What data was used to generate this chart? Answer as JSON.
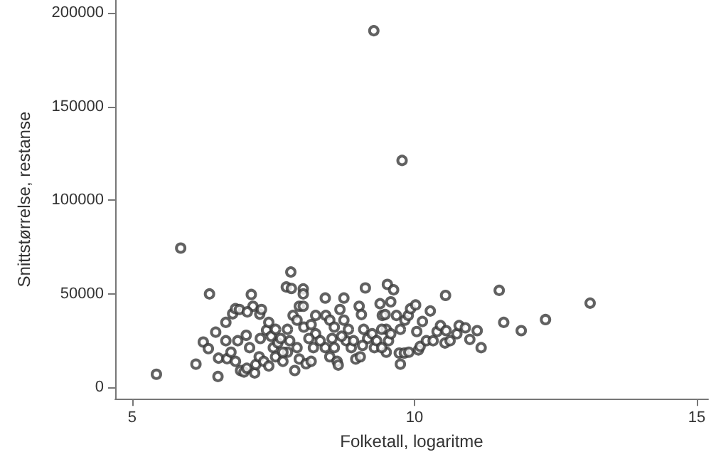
{
  "chart_data": {
    "type": "scatter",
    "xlabel": "Folketall, logaritme",
    "ylabel": "Snittstørrelse, restanse",
    "xlim": [
      4.7,
      15.2
    ],
    "xticks": [
      5,
      10,
      15
    ],
    "ylim": [
      -6000,
      207000
    ],
    "yticks": [
      0,
      50000,
      100000,
      150000,
      200000
    ],
    "grid": false,
    "marker": "circle",
    "series": [
      {
        "color": "#3a3a3a",
        "x": [
          9.28,
          9.78,
          5.86,
          5.43,
          6.37,
          6.52,
          6.13,
          6.26,
          6.35,
          6.48,
          6.66,
          6.53,
          6.68,
          6.66,
          6.75,
          6.78,
          6.83,
          6.9,
          7.11,
          7.14,
          7.04,
          7.26,
          7.29,
          6.83,
          6.87,
          6.92,
          6.98,
          7.03,
          7.02,
          7.08,
          7.17,
          7.19,
          7.25,
          7.27,
          7.33,
          7.38,
          7.42,
          7.46,
          7.5,
          7.54,
          7.58,
          7.67,
          7.73,
          7.82,
          7.81,
          8.03,
          8.03,
          7.96,
          8.03,
          7.75,
          7.85,
          7.92,
          7.96,
          7.88,
          8.08,
          8.17,
          8.21,
          8.25,
          8.13,
          7.75,
          7.67,
          7.79,
          8.04,
          8.25,
          8.42,
          8.43,
          8.5,
          8.58,
          8.54,
          8.42,
          8.5,
          8.63,
          8.65,
          8.75,
          8.68,
          8.75,
          8.83,
          8.79,
          8.88,
          8.96,
          9.04,
          9.02,
          9.06,
          9.13,
          9.1,
          9.17,
          9.25,
          9.29,
          9.39,
          9.43,
          9.48,
          9.52,
          9.58,
          9.63,
          9.5,
          9.54,
          9.5,
          9.68,
          9.73,
          9.75,
          9.75,
          9.83,
          9.82,
          9.89,
          9.9,
          9.93,
          10.02,
          10.04,
          10.07,
          10.1,
          10.14,
          10.21,
          10.28,
          10.33,
          10.4,
          10.46,
          10.56,
          10.55,
          10.54,
          10.63,
          10.75,
          10.79,
          10.9,
          10.98,
          11.11,
          11.18,
          11.5,
          11.58,
          11.89,
          12.32,
          13.11,
          7.42,
          7.54,
          7.63,
          7.92,
          8.17,
          8.33,
          8.58,
          8.71,
          8.92,
          9.08,
          9.33,
          9.42,
          9.58,
          9.42
        ],
        "values": [
          190600,
          121300,
          74500,
          7100,
          50000,
          5900,
          12500,
          24300,
          20800,
          29600,
          34800,
          15700,
          15400,
          25000,
          18900,
          39400,
          42100,
          41700,
          49700,
          43400,
          40400,
          39200,
          41700,
          14000,
          25000,
          9100,
          8300,
          10300,
          27900,
          21300,
          7800,
          12300,
          16400,
          26200,
          14000,
          30600,
          11500,
          27400,
          21300,
          16400,
          23800,
          14000,
          53700,
          52900,
          61700,
          52700,
          50000,
          43400,
          43400,
          31100,
          38500,
          21300,
          15200,
          9100,
          12700,
          14000,
          21300,
          28700,
          26200,
          18900,
          18900,
          25000,
          32300,
          38500,
          47800,
          38500,
          36000,
          32300,
          26200,
          21300,
          16400,
          14000,
          12000,
          47800,
          41700,
          36000,
          31100,
          25000,
          21300,
          15200,
          16400,
          43400,
          39000,
          53200,
          31100,
          26200,
          28700,
          21300,
          44800,
          38500,
          39000,
          55100,
          45800,
          52200,
          31100,
          25000,
          18900,
          38500,
          18400,
          12500,
          31100,
          36000,
          18400,
          38500,
          18900,
          42100,
          44100,
          29900,
          20100,
          22000,
          35300,
          25000,
          40900,
          25000,
          29900,
          33100,
          30400,
          49200,
          23800,
          25000,
          28700,
          33100,
          31900,
          25700,
          30400,
          21300,
          51900,
          34800,
          30400,
          36300,
          45100,
          34800,
          31100,
          26200,
          36000,
          33600,
          25000,
          21300,
          27400,
          25000,
          22500,
          25000,
          31100,
          28700,
          21300
        ]
      }
    ]
  }
}
